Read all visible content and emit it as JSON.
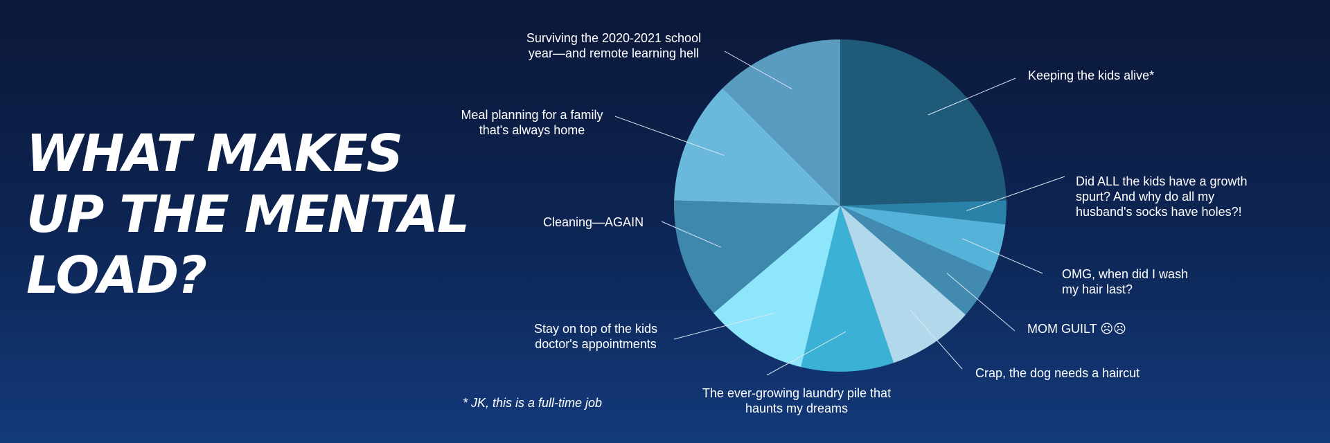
{
  "headline": "WHAT MAKES UP THE MENTAL LOAD?",
  "footnote": "* JK, this is a full-time job",
  "chart_data": {
    "type": "pie",
    "title": "WHAT MAKES UP THE MENTAL LOAD?",
    "start_angle_deg": 0,
    "direction": "clockwise",
    "slices": [
      {
        "lines": [
          "Keeping the kids alive*"
        ],
        "value": 24.5,
        "color": "#1f5a78"
      },
      {
        "lines": [
          "Did ALL the kids have a growth",
          "spurt? And why do all my",
          "husband's socks have holes?!"
        ],
        "value": 2.3,
        "color": "#2b82a8"
      },
      {
        "lines": [
          "OMG, when did I wash",
          "my hair last?"
        ],
        "value": 4.8,
        "color": "#55b2d8"
      },
      {
        "lines": [
          "MOM GUILT ☹☹"
        ],
        "value": 4.8,
        "color": "#428aaf"
      },
      {
        "lines": [
          "Crap, the dog needs a haircut"
        ],
        "value": 8.4,
        "color": "#b2d8ec"
      },
      {
        "lines": [
          "The ever-growing laundry pile that",
          "haunts my dreams"
        ],
        "value": 9.0,
        "color": "#3bb2d5"
      },
      {
        "lines": [
          "Stay on top of the kids",
          "doctor's appointments"
        ],
        "value": 10.0,
        "color": "#8ee6fb"
      },
      {
        "lines": [
          "Cleaning—AGAIN"
        ],
        "value": 11.7,
        "color": "#3f88ad"
      },
      {
        "lines": [
          "Meal planning for a family",
          "that's always home"
        ],
        "value": 12.0,
        "color": "#6ab8dc"
      },
      {
        "lines": [
          "Surviving the 2020-2021 school",
          "year—and remote learning hell"
        ],
        "value": 12.5,
        "color": "#5a9bc0"
      }
    ]
  }
}
